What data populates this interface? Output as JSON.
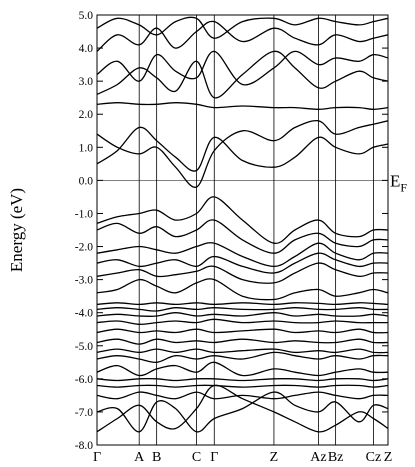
{
  "chart_data": {
    "type": "line",
    "title": "",
    "ylabel": "Energy (eV)",
    "fermi_label_main": "E",
    "fermi_label_sub": "F",
    "ylim": [
      -8.0,
      5.0
    ],
    "y_ticks": [
      5.0,
      4.0,
      3.0,
      2.0,
      1.0,
      0.0,
      -1.0,
      -2.0,
      -3.0,
      -4.0,
      -5.0,
      -6.0,
      -7.0,
      -8.0
    ],
    "y_tick_labels": [
      "5.0",
      "4.0",
      "3.0",
      "2.0",
      "1.0",
      "0.0",
      "-1.0",
      "-2.0",
      "-3.0",
      "-4.0",
      "-5.0",
      "-6.0",
      "-7.0",
      "-8.0"
    ],
    "fermi_level": 0.0,
    "k_path": {
      "x_max": 1.0,
      "points": [
        {
          "label": "Γ",
          "x": 0.0
        },
        {
          "label": "A",
          "x": 0.145
        },
        {
          "label": "B",
          "x": 0.205
        },
        {
          "label": "C",
          "x": 0.342
        },
        {
          "label": "Γ",
          "x": 0.403
        },
        {
          "label": "Z",
          "x": 0.608
        },
        {
          "label": "Az",
          "x": 0.761
        },
        {
          "label": "Bz",
          "x": 0.82
        },
        {
          "label": "Cz",
          "x": 0.95
        },
        {
          "label": "Z",
          "x": 1.0
        }
      ]
    },
    "bands": [
      {
        "name": "",
        "x": [
          0,
          0.07,
          0.145,
          0.205,
          0.27,
          0.342,
          0.403,
          0.5,
          0.608,
          0.68,
          0.761,
          0.82,
          0.9,
          0.95,
          1.0
        ],
        "values": [
          -7.6,
          -7.2,
          -6.8,
          -7.3,
          -7.5,
          -6.9,
          -6.2,
          -6.6,
          -7.0,
          -7.3,
          -7.6,
          -7.4,
          -7.0,
          -7.2,
          -7.5
        ]
      },
      {
        "name": "",
        "x": [
          0,
          0.07,
          0.145,
          0.205,
          0.27,
          0.342,
          0.403,
          0.5,
          0.608,
          0.68,
          0.761,
          0.82,
          0.9,
          0.95,
          1.0
        ],
        "values": [
          -7.0,
          -6.9,
          -7.6,
          -6.7,
          -6.9,
          -7.6,
          -7.2,
          -6.9,
          -6.4,
          -6.8,
          -7.0,
          -6.7,
          -7.3,
          -6.8,
          -6.9
        ]
      },
      {
        "name": "",
        "x": [
          0,
          0.07,
          0.145,
          0.205,
          0.27,
          0.342,
          0.403,
          0.5,
          0.608,
          0.68,
          0.761,
          0.82,
          0.9,
          0.95,
          1.0
        ],
        "values": [
          -6.5,
          -6.6,
          -6.4,
          -6.5,
          -6.6,
          -6.4,
          -6.6,
          -6.5,
          -6.6,
          -6.5,
          -6.4,
          -6.5,
          -6.6,
          -6.5,
          -6.5
        ]
      },
      {
        "name": "",
        "x": [
          0,
          0.07,
          0.145,
          0.205,
          0.27,
          0.342,
          0.403,
          0.5,
          0.608,
          0.68,
          0.761,
          0.82,
          0.9,
          0.95,
          1.0
        ],
        "values": [
          -6.2,
          -6.25,
          -6.2,
          -6.2,
          -6.25,
          -6.2,
          -6.2,
          -6.25,
          -6.2,
          -6.2,
          -6.25,
          -6.2,
          -6.2,
          -6.25,
          -6.2
        ]
      },
      {
        "name": "",
        "x": [
          0,
          0.07,
          0.145,
          0.205,
          0.27,
          0.342,
          0.403,
          0.5,
          0.608,
          0.68,
          0.761,
          0.82,
          0.9,
          0.95,
          1.0
        ],
        "values": [
          -6.0,
          -6.05,
          -6.0,
          -6.0,
          -6.05,
          -6.0,
          -6.0,
          -6.05,
          -6.0,
          -6.0,
          -6.05,
          -6.0,
          -6.0,
          -6.05,
          -6.0
        ]
      },
      {
        "name": "",
        "x": [
          0,
          0.07,
          0.145,
          0.205,
          0.27,
          0.342,
          0.403,
          0.5,
          0.608,
          0.68,
          0.761,
          0.82,
          0.9,
          0.95,
          1.0
        ],
        "values": [
          -5.8,
          -5.6,
          -5.9,
          -5.7,
          -5.6,
          -5.8,
          -5.5,
          -5.9,
          -5.7,
          -5.8,
          -5.9,
          -5.8,
          -5.7,
          -5.8,
          -5.8
        ]
      },
      {
        "name": "",
        "x": [
          0,
          0.07,
          0.145,
          0.205,
          0.27,
          0.342,
          0.403,
          0.5,
          0.608,
          0.68,
          0.761,
          0.82,
          0.9,
          0.95,
          1.0
        ],
        "values": [
          -5.4,
          -5.3,
          -5.4,
          -5.5,
          -5.3,
          -5.4,
          -5.3,
          -5.4,
          -5.2,
          -5.3,
          -5.4,
          -5.3,
          -5.4,
          -5.3,
          -5.3
        ]
      },
      {
        "name": "",
        "x": [
          0,
          0.07,
          0.145,
          0.205,
          0.27,
          0.342,
          0.403,
          0.5,
          0.608,
          0.68,
          0.761,
          0.82,
          0.9,
          0.95,
          1.0
        ],
        "values": [
          -5.2,
          -5.1,
          -5.2,
          -5.1,
          -5.2,
          -5.1,
          -5.2,
          -5.15,
          -5.1,
          -5.2,
          -5.15,
          -5.2,
          -5.1,
          -5.2,
          -5.2
        ]
      },
      {
        "name": "",
        "x": [
          0,
          0.07,
          0.145,
          0.205,
          0.27,
          0.342,
          0.403,
          0.5,
          0.608,
          0.68,
          0.761,
          0.82,
          0.9,
          0.95,
          1.0
        ],
        "values": [
          -4.9,
          -4.8,
          -4.95,
          -4.8,
          -4.9,
          -4.85,
          -4.9,
          -4.8,
          -4.9,
          -4.85,
          -4.9,
          -4.9,
          -4.8,
          -4.9,
          -4.9
        ]
      },
      {
        "name": "",
        "x": [
          0,
          0.07,
          0.145,
          0.205,
          0.27,
          0.342,
          0.403,
          0.5,
          0.608,
          0.68,
          0.761,
          0.82,
          0.9,
          0.95,
          1.0
        ],
        "values": [
          -4.6,
          -4.5,
          -4.6,
          -4.55,
          -4.6,
          -4.5,
          -4.6,
          -4.55,
          -4.5,
          -4.6,
          -4.55,
          -4.6,
          -4.5,
          -4.6,
          -4.6
        ]
      },
      {
        "name": "",
        "x": [
          0,
          0.07,
          0.145,
          0.205,
          0.27,
          0.342,
          0.403,
          0.5,
          0.608,
          0.68,
          0.761,
          0.82,
          0.9,
          0.95,
          1.0
        ],
        "values": [
          -4.3,
          -4.25,
          -4.35,
          -4.3,
          -4.25,
          -4.3,
          -4.2,
          -4.3,
          -4.25,
          -4.3,
          -4.3,
          -4.25,
          -4.3,
          -4.3,
          -4.3
        ]
      },
      {
        "name": "",
        "x": [
          0,
          0.07,
          0.145,
          0.205,
          0.27,
          0.342,
          0.403,
          0.5,
          0.608,
          0.68,
          0.761,
          0.82,
          0.9,
          0.95,
          1.0
        ],
        "values": [
          -4.1,
          -4.05,
          -4.1,
          -4.1,
          -4.0,
          -4.1,
          -4.05,
          -4.1,
          -4.0,
          -4.1,
          -4.05,
          -4.1,
          -4.1,
          -4.05,
          -4.1
        ]
      },
      {
        "name": "",
        "x": [
          0,
          0.07,
          0.145,
          0.205,
          0.27,
          0.342,
          0.403,
          0.5,
          0.608,
          0.68,
          0.761,
          0.82,
          0.9,
          0.95,
          1.0
        ],
        "values": [
          -3.9,
          -3.85,
          -3.9,
          -3.95,
          -3.85,
          -3.9,
          -3.85,
          -3.9,
          -3.9,
          -3.85,
          -3.9,
          -3.9,
          -3.85,
          -3.9,
          -3.9
        ]
      },
      {
        "name": "",
        "x": [
          0,
          0.07,
          0.145,
          0.205,
          0.27,
          0.342,
          0.403,
          0.5,
          0.608,
          0.68,
          0.761,
          0.82,
          0.9,
          0.95,
          1.0
        ],
        "values": [
          -3.75,
          -3.7,
          -3.75,
          -3.7,
          -3.75,
          -3.7,
          -3.75,
          -3.7,
          -3.75,
          -3.7,
          -3.72,
          -3.75,
          -3.7,
          -3.72,
          -3.75
        ]
      },
      {
        "name": "",
        "x": [
          0,
          0.07,
          0.145,
          0.205,
          0.27,
          0.342,
          0.403,
          0.5,
          0.608,
          0.68,
          0.761,
          0.82,
          0.9,
          0.95,
          1.0
        ],
        "values": [
          -3.4,
          -3.3,
          -3.0,
          -3.2,
          -3.4,
          -3.1,
          -3.0,
          -3.5,
          -3.6,
          -3.4,
          -3.3,
          -3.5,
          -3.4,
          -3.3,
          -3.4
        ]
      },
      {
        "name": "",
        "x": [
          0,
          0.07,
          0.145,
          0.205,
          0.27,
          0.342,
          0.403,
          0.5,
          0.608,
          0.68,
          0.761,
          0.82,
          0.9,
          0.95,
          1.0
        ],
        "values": [
          -2.9,
          -2.8,
          -2.7,
          -2.9,
          -2.85,
          -2.75,
          -2.6,
          -3.0,
          -3.1,
          -2.8,
          -2.5,
          -2.7,
          -2.9,
          -2.8,
          -2.8
        ]
      },
      {
        "name": "",
        "x": [
          0,
          0.07,
          0.145,
          0.205,
          0.27,
          0.342,
          0.403,
          0.5,
          0.608,
          0.68,
          0.761,
          0.82,
          0.9,
          0.95,
          1.0
        ],
        "values": [
          -2.5,
          -2.4,
          -2.6,
          -2.5,
          -2.4,
          -2.6,
          -2.3,
          -2.6,
          -2.8,
          -2.5,
          -2.2,
          -2.4,
          -2.6,
          -2.5,
          -2.5
        ]
      },
      {
        "name": "",
        "x": [
          0,
          0.07,
          0.145,
          0.205,
          0.27,
          0.342,
          0.403,
          0.5,
          0.608,
          0.68,
          0.761,
          0.82,
          0.9,
          0.95,
          1.0
        ],
        "values": [
          -2.2,
          -2.1,
          -2.0,
          -2.1,
          -2.2,
          -2.0,
          -1.9,
          -2.3,
          -2.6,
          -2.3,
          -1.9,
          -2.2,
          -2.4,
          -2.2,
          -2.2
        ]
      },
      {
        "name": "",
        "x": [
          0,
          0.07,
          0.145,
          0.205,
          0.27,
          0.342,
          0.403,
          0.5,
          0.608,
          0.68,
          0.761,
          0.82,
          0.9,
          0.95,
          1.0
        ],
        "values": [
          -1.5,
          -1.3,
          -1.6,
          -1.4,
          -1.7,
          -1.5,
          -1.2,
          -1.8,
          -2.2,
          -1.8,
          -1.6,
          -1.9,
          -2.0,
          -1.8,
          -1.8
        ]
      },
      {
        "name": "",
        "x": [
          0,
          0.07,
          0.145,
          0.205,
          0.27,
          0.342,
          0.403,
          0.5,
          0.608,
          0.68,
          0.761,
          0.82,
          0.9,
          0.95,
          1.0
        ],
        "values": [
          -1.3,
          -1.1,
          -1.0,
          -0.9,
          -1.2,
          -1.0,
          -0.5,
          -1.2,
          -1.9,
          -1.5,
          -1.2,
          -1.6,
          -1.7,
          -1.5,
          -1.5
        ]
      },
      {
        "name": "",
        "x": [
          0,
          0.07,
          0.145,
          0.205,
          0.27,
          0.342,
          0.403,
          0.5,
          0.608,
          0.68,
          0.761,
          0.82,
          0.9,
          0.95,
          1.0
        ],
        "values": [
          0.5,
          0.9,
          1.6,
          1.2,
          0.7,
          0.3,
          1.3,
          0.6,
          0.4,
          0.7,
          1.3,
          1.0,
          0.8,
          1.0,
          1.1
        ]
      },
      {
        "name": "",
        "x": [
          0,
          0.07,
          0.145,
          0.205,
          0.27,
          0.342,
          0.403,
          0.5,
          0.608,
          0.68,
          0.761,
          0.82,
          0.9,
          0.95,
          1.0
        ],
        "values": [
          1.4,
          1.0,
          0.8,
          1.0,
          0.4,
          -0.2,
          0.9,
          1.5,
          1.2,
          1.6,
          1.8,
          1.4,
          1.6,
          1.7,
          1.8
        ]
      },
      {
        "name": "",
        "x": [
          0,
          0.07,
          0.145,
          0.205,
          0.27,
          0.342,
          0.403,
          0.5,
          0.608,
          0.68,
          0.761,
          0.82,
          0.9,
          0.95,
          1.0
        ],
        "values": [
          2.3,
          2.35,
          2.3,
          2.3,
          2.35,
          2.3,
          2.2,
          2.25,
          2.2,
          2.2,
          2.15,
          2.2,
          2.2,
          2.15,
          2.2
        ]
      },
      {
        "name": "",
        "x": [
          0,
          0.07,
          0.145,
          0.205,
          0.27,
          0.342,
          0.403,
          0.5,
          0.608,
          0.68,
          0.761,
          0.82,
          0.9,
          0.95,
          1.0
        ],
        "values": [
          2.6,
          2.9,
          3.4,
          3.1,
          2.7,
          3.6,
          2.5,
          3.2,
          3.9,
          3.4,
          2.8,
          3.0,
          3.3,
          3.1,
          3.0
        ]
      },
      {
        "name": "",
        "x": [
          0,
          0.07,
          0.145,
          0.205,
          0.27,
          0.342,
          0.403,
          0.5,
          0.608,
          0.68,
          0.761,
          0.82,
          0.9,
          0.95,
          1.0
        ],
        "values": [
          3.2,
          3.6,
          3.0,
          3.8,
          3.3,
          3.1,
          3.9,
          2.9,
          3.4,
          3.9,
          3.5,
          3.7,
          3.6,
          3.8,
          3.7
        ]
      },
      {
        "name": "",
        "x": [
          0,
          0.07,
          0.145,
          0.205,
          0.27,
          0.342,
          0.403,
          0.5,
          0.608,
          0.68,
          0.761,
          0.82,
          0.9,
          0.95,
          1.0
        ],
        "values": [
          3.9,
          4.4,
          4.1,
          4.6,
          4.0,
          4.5,
          4.8,
          4.2,
          4.6,
          4.3,
          4.1,
          4.4,
          4.2,
          4.3,
          4.4
        ]
      },
      {
        "name": "",
        "x": [
          0,
          0.07,
          0.145,
          0.205,
          0.27,
          0.342,
          0.403,
          0.5,
          0.608,
          0.68,
          0.761,
          0.82,
          0.9,
          0.95,
          1.0
        ],
        "values": [
          4.6,
          4.9,
          4.7,
          4.4,
          4.8,
          4.9,
          4.3,
          4.8,
          4.9,
          4.7,
          4.9,
          4.8,
          4.7,
          4.8,
          4.9
        ]
      }
    ]
  }
}
